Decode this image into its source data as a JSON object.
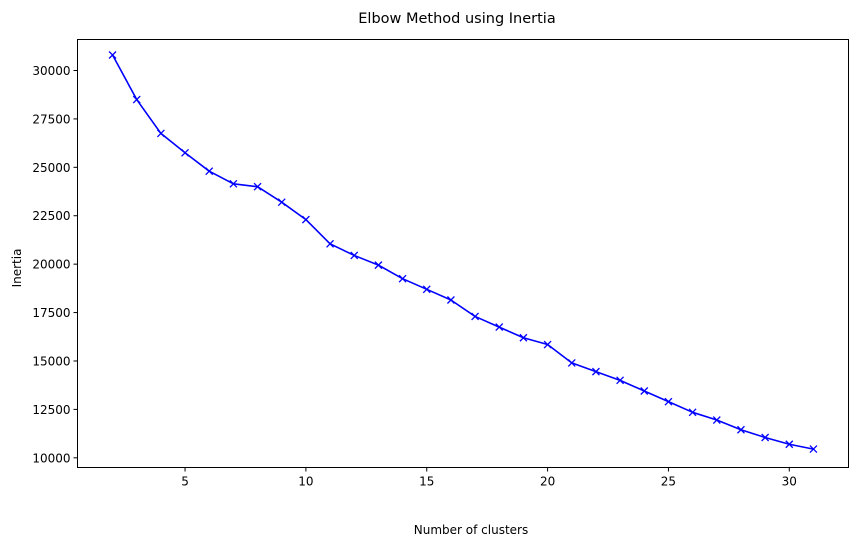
{
  "chart_data": {
    "type": "line",
    "title": "Elbow Method using Inertia",
    "xlabel": "Number of clusters",
    "ylabel": "Inertia",
    "xlim": [
      0.55,
      32.45
    ],
    "ylim": [
      9500,
      31600
    ],
    "xticks": [
      5,
      10,
      15,
      20,
      25,
      30
    ],
    "yticks": [
      10000,
      12500,
      15000,
      17500,
      20000,
      22500,
      25000,
      27500,
      30000
    ],
    "grid": false,
    "marker": "x",
    "color": "#0000ff",
    "series": [
      {
        "x": [
          2,
          3,
          4,
          5,
          6,
          7,
          8,
          9,
          10,
          11,
          12,
          13,
          14,
          15,
          16,
          17,
          18,
          19,
          20,
          21,
          22,
          23,
          24,
          25,
          26,
          27,
          28,
          29,
          30,
          31
        ],
        "values": [
          30800,
          28500,
          26750,
          25750,
          24800,
          24150,
          24000,
          23200,
          22300,
          21050,
          20450,
          19950,
          19250,
          18700,
          18150,
          17300,
          16750,
          16200,
          15850,
          14900,
          14450,
          14000,
          13450,
          12900,
          12350,
          11950,
          11450,
          11050,
          10700,
          10450
        ]
      }
    ]
  }
}
